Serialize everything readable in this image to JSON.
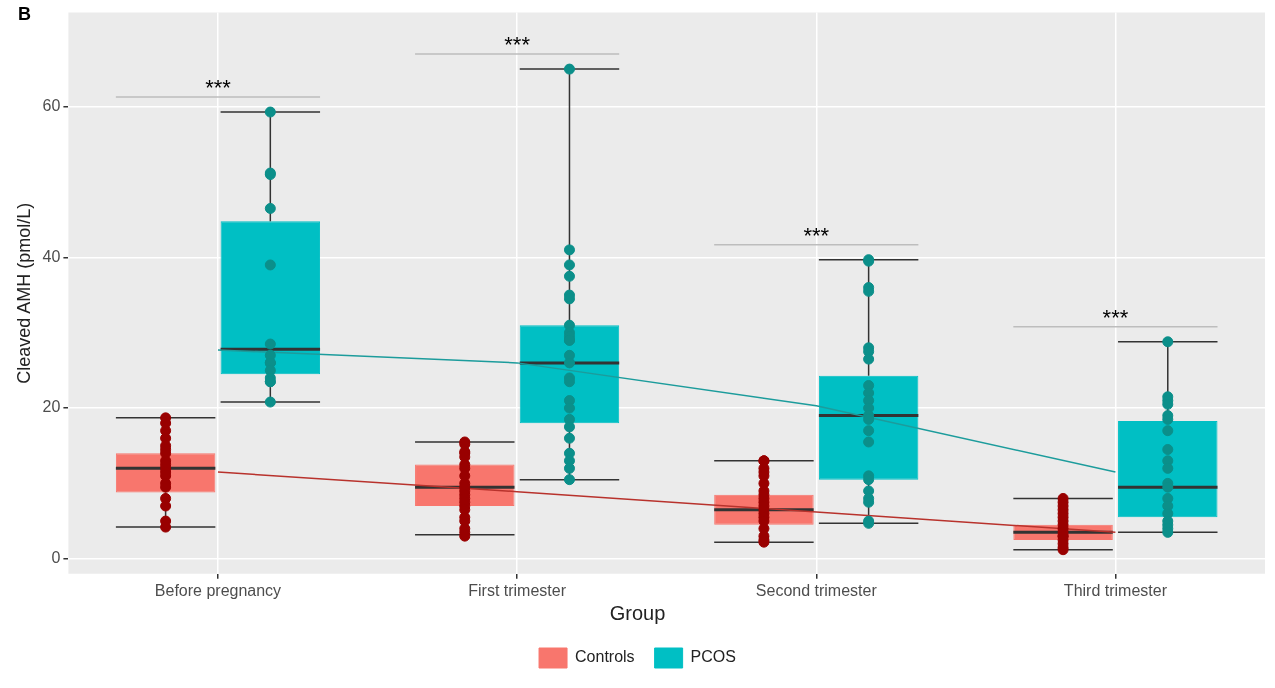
{
  "chart_data": {
    "type": "box",
    "annotations": [
      "B",
      "***",
      "***",
      "***",
      "***"
    ],
    "ylabel": "Cleaved AMH (pmol/L)",
    "legend_title": "Group",
    "categories": [
      "Before pregnancy",
      "First trimester",
      "Second trimester",
      "Third trimester"
    ],
    "series": [
      {
        "name": "Controls",
        "color": "#f8766d",
        "boxes": [
          {
            "low": 4.2,
            "q1": 8.8,
            "median": 12,
            "q3": 14,
            "high": 18.7
          },
          {
            "low": 3.2,
            "q1": 7,
            "median": 9.5,
            "q3": 12.5,
            "high": 15.5
          },
          {
            "low": 2.2,
            "q1": 4.5,
            "median": 6.5,
            "q3": 8.5,
            "high": 13
          },
          {
            "low": 1.2,
            "q1": 2.5,
            "median": 3.5,
            "q3": 4.5,
            "high": 8
          }
        ]
      },
      {
        "name": "PCOS",
        "color": "#00bfc4",
        "boxes": [
          {
            "low": 20.8,
            "q1": 24.5,
            "median": 27.8,
            "q3": 44.8,
            "high": 59.3
          },
          {
            "low": 10.5,
            "q1": 18,
            "median": 26,
            "q3": 31,
            "high": 65
          },
          {
            "low": 4.7,
            "q1": 10.5,
            "median": 19,
            "q3": 24.3,
            "high": 39.7
          },
          {
            "low": 3.5,
            "q1": 5.5,
            "median": 9.5,
            "q3": 18.3,
            "high": 28.8
          }
        ]
      },
      {
        "type": "line",
        "color": "#b8322c",
        "values": [
          11.5,
          8.9,
          6.2,
          3.5
        ]
      },
      {
        "type": "line",
        "color": "#1c9c9c",
        "values": [
          27.7,
          26,
          20.3,
          11.5
        ]
      },
      {
        "type": "scatter",
        "color": "#990000",
        "x": [
          "Before pregnancy",
          "Before pregnancy",
          "Before pregnancy",
          "Before pregnancy",
          "Before pregnancy",
          "Before pregnancy",
          "Before pregnancy",
          "Before pregnancy",
          "Before pregnancy",
          "Before pregnancy",
          "Before pregnancy",
          "Before pregnancy",
          "Before pregnancy",
          "Before pregnancy",
          "Before pregnancy",
          "Before pregnancy",
          "Before pregnancy",
          "Before pregnancy",
          "First trimester",
          "First trimester",
          "First trimester",
          "First trimester",
          "First trimester",
          "First trimester",
          "First trimester",
          "First trimester",
          "First trimester",
          "First trimester",
          "First trimester",
          "First trimester",
          "First trimester",
          "First trimester",
          "First trimester",
          "First trimester",
          "First trimester",
          "First trimester",
          "First trimester",
          "First trimester",
          "First trimester",
          "Second trimester",
          "Second trimester",
          "Second trimester",
          "Second trimester",
          "Second trimester",
          "Second trimester",
          "Second trimester",
          "Second trimester",
          "Second trimester",
          "Second trimester",
          "Second trimester",
          "Second trimester",
          "Second trimester",
          "Second trimester",
          "Second trimester",
          "Second trimester",
          "Second trimester",
          "Second trimester",
          "Second trimester",
          "Third trimester",
          "Third trimester",
          "Third trimester",
          "Third trimester",
          "Third trimester",
          "Third trimester",
          "Third trimester",
          "Third trimester",
          "Third trimester",
          "Third trimester",
          "Third trimester",
          "Third trimester",
          "Third trimester",
          "Third trimester",
          "Third trimester",
          "Third trimester"
        ],
        "values": [
          18,
          18.7,
          17,
          16,
          15,
          14.5,
          14,
          13,
          12.5,
          12,
          11.5,
          11,
          10,
          9.5,
          8,
          7,
          5,
          4.2,
          15.5,
          15.2,
          14.2,
          14,
          13.5,
          12.5,
          12,
          11,
          10,
          9.5,
          9,
          8.5,
          8,
          7.5,
          7,
          6.5,
          5.5,
          5,
          4,
          3.5,
          3,
          13,
          13,
          12,
          11.5,
          11,
          10,
          9,
          8.5,
          8,
          7.5,
          7,
          6.5,
          6,
          5.5,
          5,
          4,
          3,
          2.5,
          2.2,
          8,
          7.5,
          7,
          6.5,
          6,
          5.5,
          5,
          4.5,
          4,
          3.5,
          3,
          3,
          2.5,
          2,
          1.5,
          1.2
        ]
      },
      {
        "type": "scatter",
        "color": "#0b8f8a",
        "x": [
          "Before pregnancy",
          "Before pregnancy",
          "Before pregnancy",
          "Before pregnancy",
          "Before pregnancy",
          "Before pregnancy",
          "Before pregnancy",
          "Before pregnancy",
          "Before pregnancy",
          "Before pregnancy",
          "Before pregnancy",
          "Before pregnancy",
          "Before pregnancy",
          "Before pregnancy",
          "First trimester",
          "First trimester",
          "First trimester",
          "First trimester",
          "First trimester",
          "First trimester",
          "First trimester",
          "First trimester",
          "First trimester",
          "First trimester",
          "First trimester",
          "First trimester",
          "First trimester",
          "First trimester",
          "First trimester",
          "First trimester",
          "First trimester",
          "First trimester",
          "First trimester",
          "First trimester",
          "First trimester",
          "First trimester",
          "First trimester",
          "First trimester",
          "Second trimester",
          "Second trimester",
          "Second trimester",
          "Second trimester",
          "Second trimester",
          "Second trimester",
          "Second trimester",
          "Second trimester",
          "Second trimester",
          "Second trimester",
          "Second trimester",
          "Second trimester",
          "Second trimester",
          "Second trimester",
          "Second trimester",
          "Second trimester",
          "Second trimester",
          "Second trimester",
          "Second trimester",
          "Second trimester",
          "Second trimester",
          "Second trimester",
          "Third trimester",
          "Third trimester",
          "Third trimester",
          "Third trimester",
          "Third trimester",
          "Third trimester",
          "Third trimester",
          "Third trimester",
          "Third trimester",
          "Third trimester",
          "Third trimester",
          "Third trimester",
          "Third trimester",
          "Third trimester",
          "Third trimester",
          "Third trimester",
          "Third trimester",
          "Third trimester",
          "Third trimester"
        ],
        "values": [
          59.3,
          51,
          51.2,
          46.5,
          39,
          28.5,
          27,
          26,
          26,
          25,
          24,
          23.5,
          23.5,
          20.8,
          65,
          41,
          39,
          37.5,
          35,
          34.5,
          31,
          30,
          29.5,
          29,
          29,
          27,
          26,
          24,
          23.5,
          21,
          20,
          18.5,
          17.5,
          16,
          14,
          13,
          12,
          10.5,
          39.7,
          39.5,
          36,
          35.5,
          28,
          27.5,
          26.5,
          23,
          22,
          21,
          20,
          19,
          18.5,
          17,
          15.5,
          11,
          10.5,
          9,
          8,
          7.5,
          5,
          4.7,
          28.8,
          21.5,
          21,
          20.5,
          19,
          18.5,
          17,
          14.5,
          13,
          12,
          10,
          9.5,
          8,
          7,
          6,
          5,
          4.5,
          4,
          3.5
        ]
      }
    ],
    "ylim": [
      -2,
      72.5
    ],
    "yticks": [
      0,
      20,
      40,
      60
    ],
    "grid": true,
    "legend": "bottom"
  }
}
